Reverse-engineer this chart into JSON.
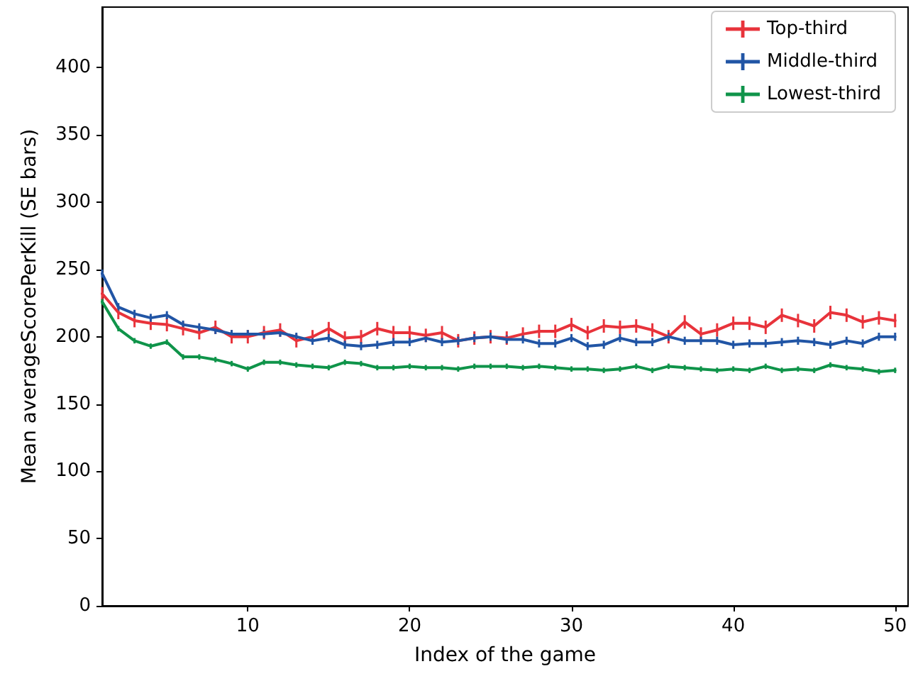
{
  "chart_data": {
    "type": "line",
    "xlabel": "Index of the game",
    "ylabel": "Mean averageScorePerKill (SE bars)",
    "x": [
      1,
      2,
      3,
      4,
      5,
      6,
      7,
      8,
      9,
      10,
      11,
      12,
      13,
      14,
      15,
      16,
      17,
      18,
      19,
      20,
      21,
      22,
      23,
      24,
      25,
      26,
      27,
      28,
      29,
      30,
      31,
      32,
      33,
      34,
      35,
      36,
      37,
      38,
      39,
      40,
      41,
      42,
      43,
      44,
      45,
      46,
      47,
      48,
      49,
      50
    ],
    "xlim": [
      1,
      50.8
    ],
    "xticks": [
      10,
      20,
      30,
      40,
      50
    ],
    "ylim": [
      0,
      445
    ],
    "yticks": [
      0,
      50,
      100,
      150,
      200,
      250,
      300,
      350,
      400
    ],
    "legend": "top right",
    "grid": false,
    "marker": "none",
    "line_style": "solid",
    "series": [
      {
        "name": "Top-third",
        "color": "#e8333b",
        "values": [
          232,
          218,
          212,
          210,
          209,
          206,
          203,
          207,
          200,
          200,
          203,
          205,
          197,
          200,
          206,
          199,
          200,
          206,
          203,
          203,
          201,
          203,
          197,
          199,
          200,
          199,
          202,
          204,
          204,
          209,
          203,
          208,
          207,
          208,
          205,
          200,
          211,
          202,
          205,
          210,
          210,
          207,
          216,
          212,
          208,
          218,
          216,
          211,
          214,
          212
        ],
        "errors": [
          5,
          5,
          5,
          5,
          5,
          5,
          5,
          5,
          5,
          5,
          5,
          5,
          5,
          5,
          5,
          5,
          5,
          5,
          5,
          5,
          5,
          5,
          5,
          5,
          5,
          5,
          5,
          5,
          5,
          5,
          5,
          5,
          5,
          5,
          5,
          5,
          5,
          5,
          5,
          5,
          5,
          5,
          5,
          5,
          5,
          5,
          5,
          5,
          5,
          5
        ]
      },
      {
        "name": "Middle-third",
        "color": "#2155a5",
        "values": [
          247,
          222,
          217,
          214,
          216,
          209,
          207,
          205,
          202,
          202,
          202,
          203,
          200,
          197,
          199,
          194,
          193,
          194,
          196,
          196,
          199,
          196,
          197,
          199,
          200,
          198,
          198,
          195,
          195,
          199,
          193,
          194,
          199,
          196,
          196,
          200,
          197,
          197,
          197,
          194,
          195,
          195,
          196,
          197,
          196,
          194,
          197,
          195,
          200,
          200
        ],
        "errors": [
          3,
          3,
          3,
          3,
          3,
          3,
          3,
          3,
          3,
          3,
          3,
          3,
          3,
          3,
          3,
          3,
          3,
          3,
          3,
          3,
          3,
          3,
          3,
          3,
          3,
          3,
          3,
          3,
          3,
          3,
          3,
          3,
          3,
          3,
          3,
          3,
          3,
          3,
          3,
          3,
          3,
          3,
          3,
          3,
          3,
          3,
          3,
          3,
          3,
          3
        ]
      },
      {
        "name": "Lowest-third",
        "color": "#0f944a",
        "values": [
          226,
          206,
          197,
          193,
          196,
          185,
          185,
          183,
          180,
          176,
          181,
          181,
          179,
          178,
          177,
          181,
          180,
          177,
          177,
          178,
          177,
          177,
          176,
          178,
          178,
          178,
          177,
          178,
          177,
          176,
          176,
          175,
          176,
          178,
          175,
          178,
          177,
          176,
          175,
          176,
          175,
          178,
          175,
          176,
          175,
          179,
          177,
          176,
          174,
          175
        ],
        "errors": [
          2,
          2,
          2,
          2,
          2,
          2,
          2,
          2,
          2,
          2,
          2,
          2,
          2,
          2,
          2,
          2,
          2,
          2,
          2,
          2,
          2,
          2,
          2,
          2,
          2,
          2,
          2,
          2,
          2,
          2,
          2,
          2,
          2,
          2,
          2,
          2,
          2,
          2,
          2,
          2,
          2,
          2,
          2,
          2,
          2,
          2,
          2,
          2,
          2,
          2
        ]
      }
    ]
  }
}
